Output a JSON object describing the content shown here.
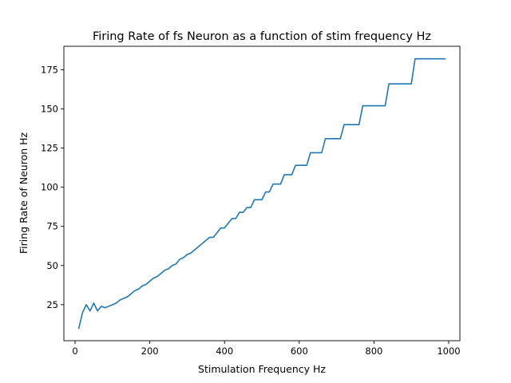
{
  "chart_data": {
    "type": "line",
    "title": "Firing Rate of fs Neuron as a function of stim frequency Hz",
    "xlabel": "Stimulation Frequency Hz",
    "ylabel": "Firing Rate of Neuron Hz",
    "xlim": [
      -30,
      1030
    ],
    "ylim": [
      2,
      190
    ],
    "xticks": [
      0,
      200,
      400,
      600,
      800,
      1000
    ],
    "yticks": [
      25,
      50,
      75,
      100,
      125,
      150,
      175
    ],
    "grid": false,
    "legend": "none",
    "series": [
      {
        "color": "#1f77b4",
        "points": [
          [
            10,
            10
          ],
          [
            20,
            20
          ],
          [
            30,
            25
          ],
          [
            40,
            21
          ],
          [
            50,
            26
          ],
          [
            60,
            21
          ],
          [
            70,
            24
          ],
          [
            80,
            23
          ],
          [
            90,
            24
          ],
          [
            100,
            25
          ],
          [
            110,
            26
          ],
          [
            120,
            28
          ],
          [
            130,
            29
          ],
          [
            140,
            30
          ],
          [
            150,
            32
          ],
          [
            160,
            34
          ],
          [
            170,
            35
          ],
          [
            180,
            37
          ],
          [
            190,
            38
          ],
          [
            200,
            40
          ],
          [
            210,
            42
          ],
          [
            220,
            43
          ],
          [
            230,
            45
          ],
          [
            240,
            47
          ],
          [
            250,
            48
          ],
          [
            260,
            50
          ],
          [
            270,
            51
          ],
          [
            280,
            54
          ],
          [
            290,
            55
          ],
          [
            300,
            57
          ],
          [
            310,
            58
          ],
          [
            320,
            60
          ],
          [
            330,
            62
          ],
          [
            340,
            64
          ],
          [
            350,
            66
          ],
          [
            360,
            68
          ],
          [
            370,
            68
          ],
          [
            380,
            71
          ],
          [
            390,
            74
          ],
          [
            400,
            74
          ],
          [
            410,
            77
          ],
          [
            420,
            80
          ],
          [
            430,
            80
          ],
          [
            440,
            84
          ],
          [
            450,
            84
          ],
          [
            460,
            87
          ],
          [
            470,
            87
          ],
          [
            480,
            92
          ],
          [
            490,
            92
          ],
          [
            500,
            92
          ],
          [
            510,
            97
          ],
          [
            520,
            97
          ],
          [
            530,
            102
          ],
          [
            540,
            102
          ],
          [
            550,
            102
          ],
          [
            560,
            108
          ],
          [
            570,
            108
          ],
          [
            580,
            108
          ],
          [
            590,
            114
          ],
          [
            600,
            114
          ],
          [
            610,
            114
          ],
          [
            620,
            114
          ],
          [
            630,
            122
          ],
          [
            640,
            122
          ],
          [
            650,
            122
          ],
          [
            660,
            122
          ],
          [
            670,
            131
          ],
          [
            680,
            131
          ],
          [
            690,
            131
          ],
          [
            700,
            131
          ],
          [
            710,
            131
          ],
          [
            720,
            140
          ],
          [
            730,
            140
          ],
          [
            740,
            140
          ],
          [
            750,
            140
          ],
          [
            760,
            140
          ],
          [
            770,
            152
          ],
          [
            780,
            152
          ],
          [
            790,
            152
          ],
          [
            800,
            152
          ],
          [
            810,
            152
          ],
          [
            820,
            152
          ],
          [
            830,
            152
          ],
          [
            840,
            166
          ],
          [
            850,
            166
          ],
          [
            860,
            166
          ],
          [
            870,
            166
          ],
          [
            880,
            166
          ],
          [
            890,
            166
          ],
          [
            900,
            166
          ],
          [
            910,
            182
          ],
          [
            920,
            182
          ],
          [
            930,
            182
          ],
          [
            940,
            182
          ],
          [
            950,
            182
          ],
          [
            960,
            182
          ],
          [
            970,
            182
          ],
          [
            980,
            182
          ],
          [
            990,
            182
          ]
        ]
      }
    ]
  }
}
